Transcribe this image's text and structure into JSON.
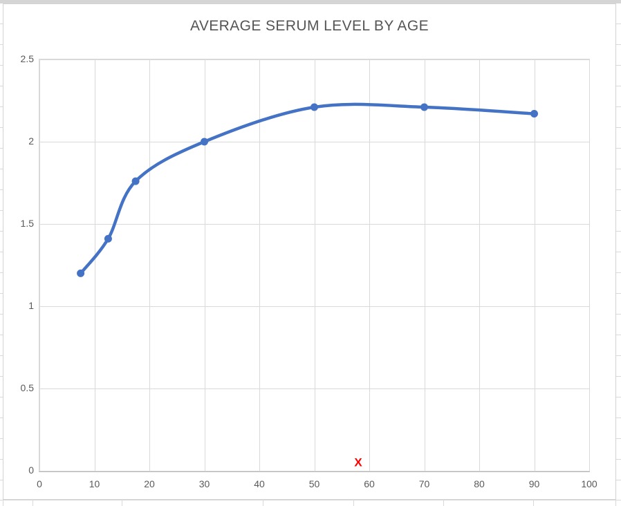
{
  "chart_data": {
    "type": "line",
    "title": "AVERAGE SERUM LEVEL BY AGE",
    "x": [
      7.5,
      12.5,
      17.5,
      30,
      50,
      70,
      90
    ],
    "series": [
      {
        "values": [
          1.2,
          1.41,
          1.76,
          2.0,
          2.21,
          2.21,
          2.17
        ]
      }
    ],
    "xlim": [
      0,
      100
    ],
    "ylim": [
      0,
      2.5
    ],
    "x_ticks": [
      0,
      10,
      20,
      30,
      40,
      50,
      60,
      70,
      80,
      90,
      100
    ],
    "y_ticks": [
      0,
      0.5,
      1,
      1.5,
      2,
      2.5
    ],
    "grid": true,
    "smooth": true,
    "legend": "none",
    "line_color": "#4472C4",
    "marker_color": "#4472C4",
    "gridline_color": "#d9d9d9",
    "axis_line_color": "#b7b7b7",
    "axis_text_color": "#595959",
    "title_color": "#555555",
    "annotations": [
      {
        "label": "X",
        "x": 58,
        "y": 0.05,
        "color": "#ff0000"
      }
    ]
  },
  "spreadsheet": {
    "gridline_color": "#d9d9d9",
    "chart_border_color": "#d2d2d2",
    "top_band_color": "#d5d5d5"
  }
}
